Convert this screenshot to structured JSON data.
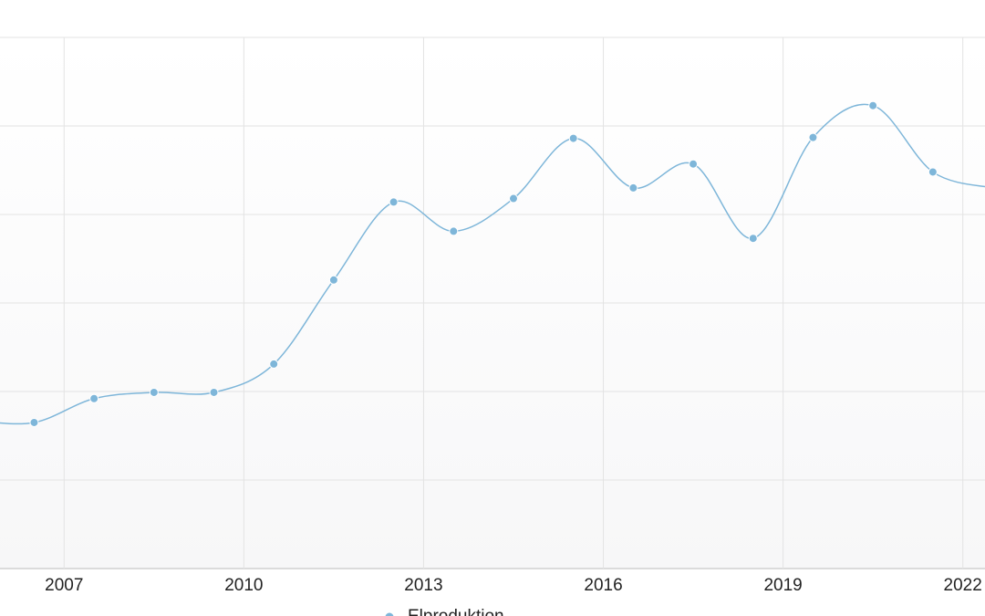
{
  "chart_data": {
    "type": "line",
    "x": [
      2005.5,
      2006.5,
      2007.5,
      2008.5,
      2009.5,
      2010.5,
      2011.5,
      2012.5,
      2013.5,
      2014.5,
      2015.5,
      2016.5,
      2017.5,
      2018.5,
      2019.5,
      2020.5,
      2021.5,
      2022.5
    ],
    "series": [
      {
        "name": "Elproduktion",
        "color": "#7eb6d9",
        "values": [
          1.67,
          1.65,
          1.92,
          1.99,
          1.99,
          2.31,
          3.26,
          4.14,
          3.81,
          4.18,
          4.86,
          4.3,
          4.57,
          3.73,
          4.87,
          5.23,
          4.48,
          4.3
        ]
      }
    ],
    "xlim": [
      2005.93,
      2022.37
    ],
    "xticks": [
      2007,
      2010,
      2013,
      2016,
      2019,
      2022
    ],
    "ylim": [
      0,
      6
    ],
    "yticks": [
      0,
      1,
      2,
      3,
      4,
      5,
      6
    ],
    "grid": true,
    "legend": "bottom"
  }
}
